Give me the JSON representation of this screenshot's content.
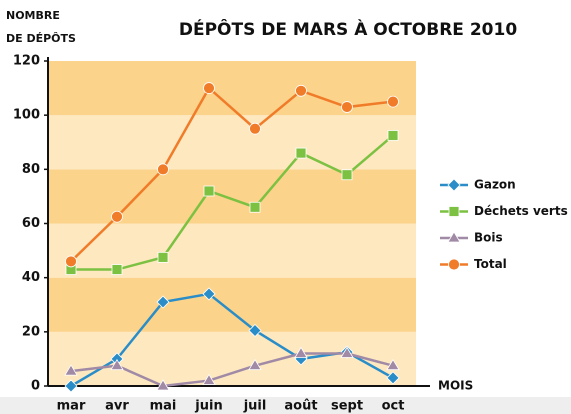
{
  "chart_data": {
    "type": "line",
    "title": "DÉPÔTS DE MARS À OCTOBRE 2010",
    "ylabel": [
      "NOMBRE",
      "DE DÉPÔTS"
    ],
    "xlabel": "MOIS",
    "categories": [
      "mar",
      "avr",
      "mai",
      "juin",
      "juil",
      "août",
      "sept",
      "oct"
    ],
    "series": [
      {
        "name": "Gazon",
        "color": "#2a8dc8",
        "marker": "diamond",
        "values": [
          0,
          10,
          31,
          34,
          20.5,
          10,
          12.5,
          3
        ]
      },
      {
        "name": "Déchets verts",
        "color": "#7cc142",
        "marker": "square",
        "values": [
          43,
          43,
          47.5,
          72,
          66,
          86,
          78,
          92.5
        ]
      },
      {
        "name": "Bois",
        "color": "#a08aa6",
        "marker": "triangle",
        "values": [
          5.5,
          7.5,
          0,
          2,
          7.5,
          12,
          12,
          7.5
        ]
      },
      {
        "name": "Total",
        "color": "#f07c2a",
        "marker": "circle",
        "values": [
          46,
          62.5,
          80,
          110,
          95,
          109,
          103,
          105
        ]
      }
    ],
    "ylim": [
      0,
      120
    ],
    "yticks": [
      0,
      20,
      40,
      60,
      80,
      100,
      120
    ],
    "bands": [
      "#fde8c0",
      "#fcd38a"
    ],
    "legend": "right"
  }
}
